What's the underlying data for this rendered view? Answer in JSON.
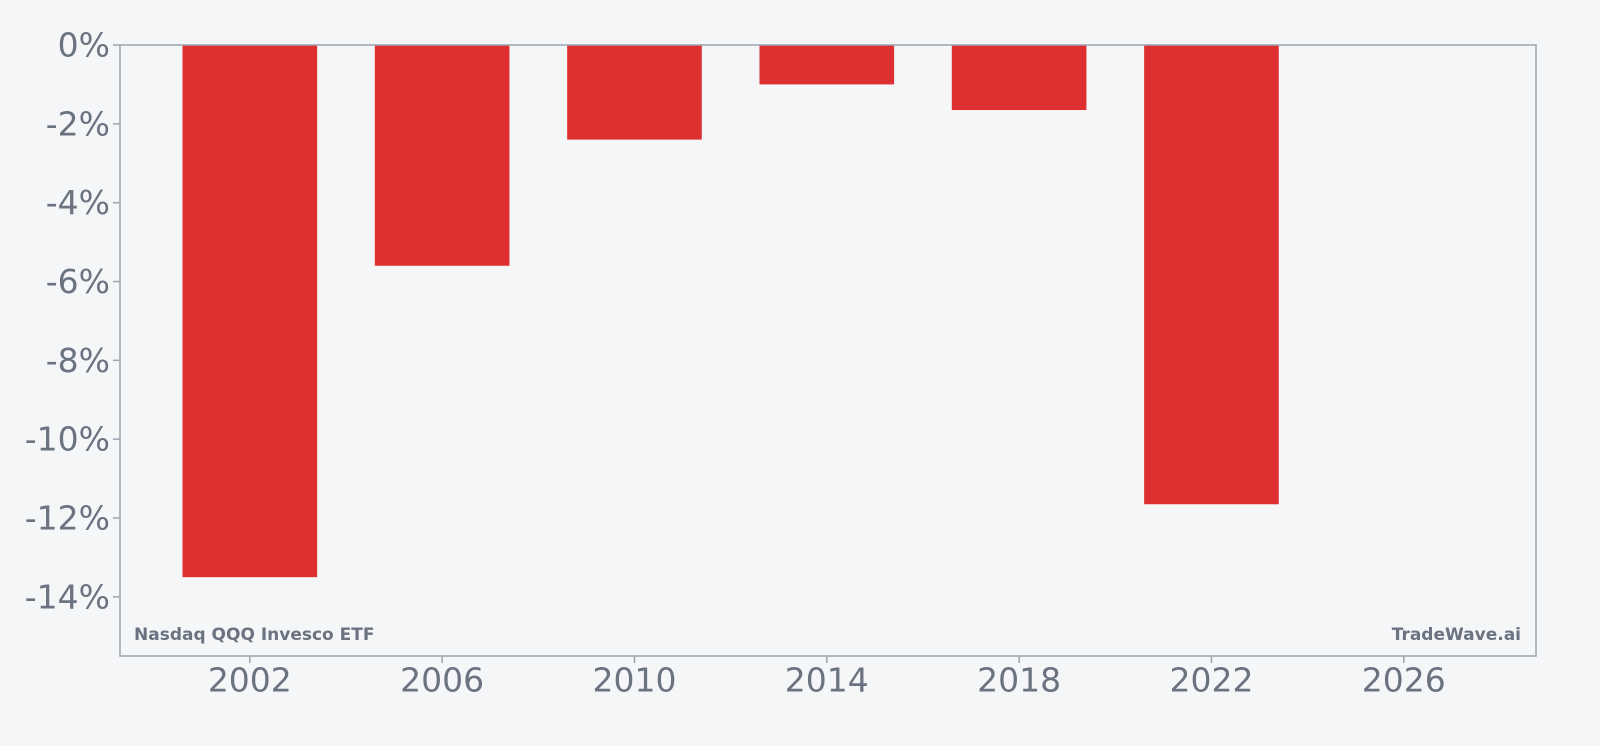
{
  "chart_data": {
    "type": "bar",
    "x": [
      2002,
      2006,
      2010,
      2014,
      2018,
      2022
    ],
    "values": [
      -13.5,
      -5.6,
      -2.4,
      -1.0,
      -1.65,
      -11.65
    ],
    "x_ticks": [
      "2002",
      "2006",
      "2010",
      "2014",
      "2018",
      "2022",
      "2026"
    ],
    "y_ticks": [
      "0%",
      "-2%",
      "-4%",
      "-6%",
      "-8%",
      "-10%",
      "-12%",
      "-14%"
    ],
    "xlim": [
      1999.3,
      2028.75
    ],
    "ylim": [
      -15.5,
      0
    ],
    "bar_width_years": 2.8,
    "title": "",
    "xlabel": "",
    "ylabel": "",
    "grid": false,
    "legend": "none",
    "colors": {
      "bar": "#de3031",
      "background": "#f4f6f8",
      "axis": "#9ca3af",
      "text": "#6b7280"
    }
  },
  "labels": {
    "fund": "Nasdaq QQQ Invesco ETF",
    "brand": "TradeWave.ai"
  }
}
